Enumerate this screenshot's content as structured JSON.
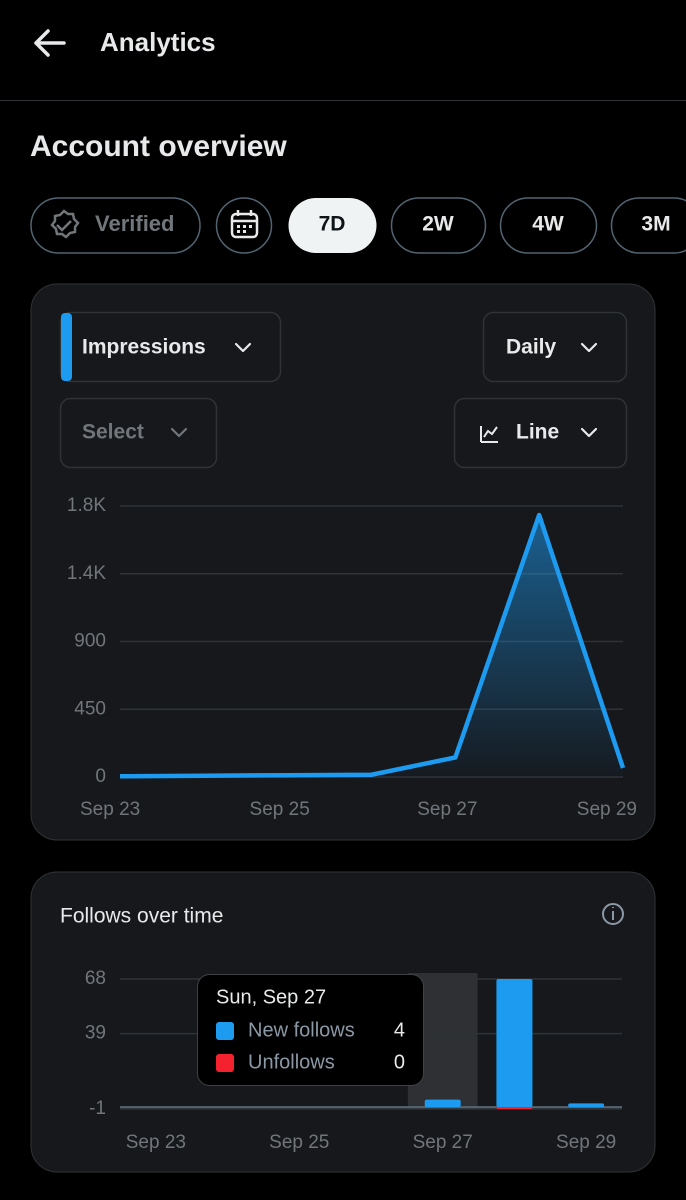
{
  "header": {
    "title": "Analytics"
  },
  "section_title": "Account overview",
  "filters": {
    "verified": "Verified",
    "ranges": [
      "7D",
      "2W",
      "4W",
      "3M"
    ]
  },
  "chart_data": [
    {
      "type": "line",
      "controls": {
        "metric": "Impressions",
        "interval": "Daily",
        "compare": "Select",
        "chart_type": "Line"
      },
      "categories": [
        "Sep 23",
        null,
        "Sep 25",
        null,
        "Sep 27",
        null,
        "Sep 29"
      ],
      "values": [
        5,
        8,
        12,
        15,
        130,
        1740,
        60
      ],
      "color": "#1d9bf0",
      "ylim": [
        0,
        1800
      ],
      "yticks": [
        0,
        450,
        900,
        {
          "value": 1350,
          "label": "1.4K"
        },
        {
          "value": 1800,
          "label": "1.8K"
        }
      ],
      "grid": true
    },
    {
      "type": "bar",
      "title": "Follows over time",
      "categories": [
        "Sep 23",
        null,
        "Sep 25",
        null,
        "Sep 27",
        null,
        "Sep 29"
      ],
      "series": [
        {
          "name": "New follows",
          "color": "#1d9bf0",
          "values": [
            0,
            0,
            0,
            0,
            4,
            68,
            2
          ]
        },
        {
          "name": "Unfollows",
          "color": "#f4212e",
          "values": [
            0,
            0,
            0,
            0,
            0,
            -1,
            0
          ]
        }
      ],
      "ylim": [
        -1,
        68
      ],
      "yticks": [
        -1,
        39,
        68
      ],
      "grid": true,
      "tooltip": {
        "title": "Sun, Sep 27"
      }
    }
  ]
}
